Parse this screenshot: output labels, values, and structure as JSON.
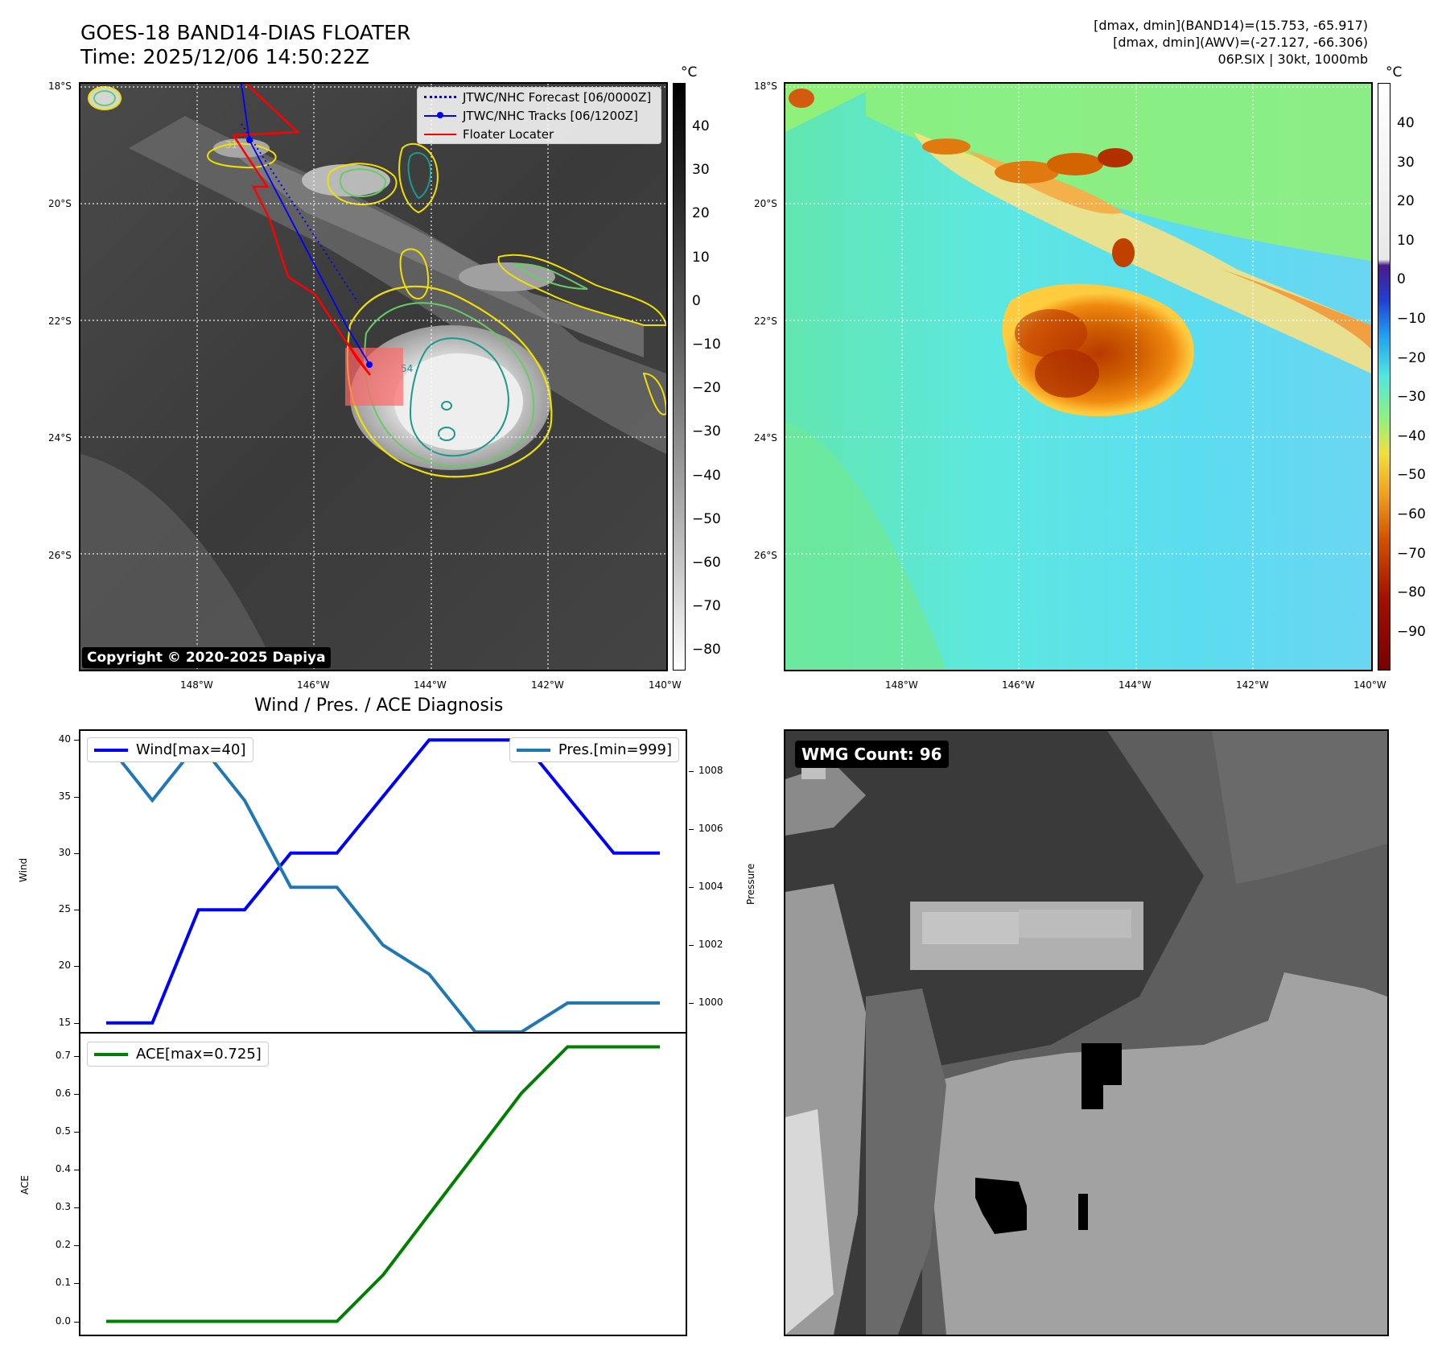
{
  "header": {
    "title_line1": "GOES-18 BAND14-DIAS FLOATER",
    "title_line2": "Time: 2025/12/06 14:50:22Z",
    "info_line1": "[dmax, dmin](BAND14)=(15.753, -65.917)",
    "info_line2": "[dmax, dmin](AWV)=(-27.127, -66.306)",
    "info_line3": "06P.SIX | 30kt, 1000mb"
  },
  "maps": {
    "lat_labels": [
      "18°S",
      "20°S",
      "22°S",
      "24°S",
      "26°S"
    ],
    "lon_labels": [
      "148°W",
      "146°W",
      "144°W",
      "142°W",
      "140°W"
    ],
    "legend": {
      "forecast": "JTWC/NHC Forecast [06/0000Z]",
      "tracks": "JTWC/NHC Tracks [06/1200Z]",
      "locator": "Floater Locater"
    },
    "copyright": "Copyright © 2020-2025 Dapiya",
    "cbar1_unit": "°C",
    "cbar1_ticks": [
      "40",
      "30",
      "20",
      "10",
      "0",
      "−10",
      "−20",
      "−30",
      "−40",
      "−50",
      "−60",
      "−70",
      "−80"
    ],
    "cbar2_unit": "°C",
    "cbar2_ticks": [
      "40",
      "30",
      "20",
      "10",
      "0",
      "−10",
      "−20",
      "−30",
      "−40",
      "−50",
      "−60",
      "−70",
      "−80",
      "−90"
    ],
    "contour_label_31": "31",
    "contour_label_54": "54",
    "colors": {
      "forecast": "#0000ff",
      "tracks": "#0000ff",
      "locator": "#ff0000",
      "contour_yellow": "#f0e000",
      "contour_green": "#66cc66",
      "contour_teal": "#1a9a8a"
    }
  },
  "diagnosis": {
    "title": "Wind / Pres. / ACE Diagnosis",
    "wmg_label": "WMG Count: 96"
  },
  "chart_data": [
    {
      "type": "line",
      "title": "Wind / Pres. / ACE Diagnosis",
      "ylabel": "Wind",
      "y2label": "Pressure",
      "ylim": [
        14.2,
        40.8
      ],
      "y2lim": [
        999.0,
        1009.4
      ],
      "yticks": [
        15,
        20,
        25,
        30,
        35,
        40
      ],
      "y2ticks": [
        1000,
        1002,
        1004,
        1006,
        1008
      ],
      "series": [
        {
          "name": "Wind[max=40]",
          "axis": "left",
          "color": "#0000ff",
          "values": [
            15,
            15,
            25,
            25,
            30,
            30,
            35,
            40,
            40,
            40,
            35,
            30,
            30
          ]
        },
        {
          "name": "Pres.[min=999]",
          "axis": "right",
          "color": "#1f77b4",
          "values": [
            1009,
            1007,
            1009,
            1007,
            1004,
            1004,
            1002,
            1001,
            999,
            999,
            1000,
            1000,
            1000
          ]
        }
      ]
    },
    {
      "type": "line",
      "ylabel": "ACE",
      "ylim": [
        -0.035,
        0.76
      ],
      "yticks": [
        0.0,
        0.1,
        0.2,
        0.3,
        0.4,
        0.5,
        0.6,
        0.7
      ],
      "ytick_labels": [
        "0.0",
        "0.1",
        "0.2",
        "0.3",
        "0.4",
        "0.5",
        "0.6",
        "0.7"
      ],
      "series": [
        {
          "name": "ACE[max=0.725]",
          "color": "#008000",
          "values": [
            0,
            0,
            0,
            0,
            0,
            0,
            0.1225,
            0.2825,
            0.4425,
            0.6025,
            0.725,
            0.725,
            0.725
          ]
        }
      ]
    }
  ]
}
